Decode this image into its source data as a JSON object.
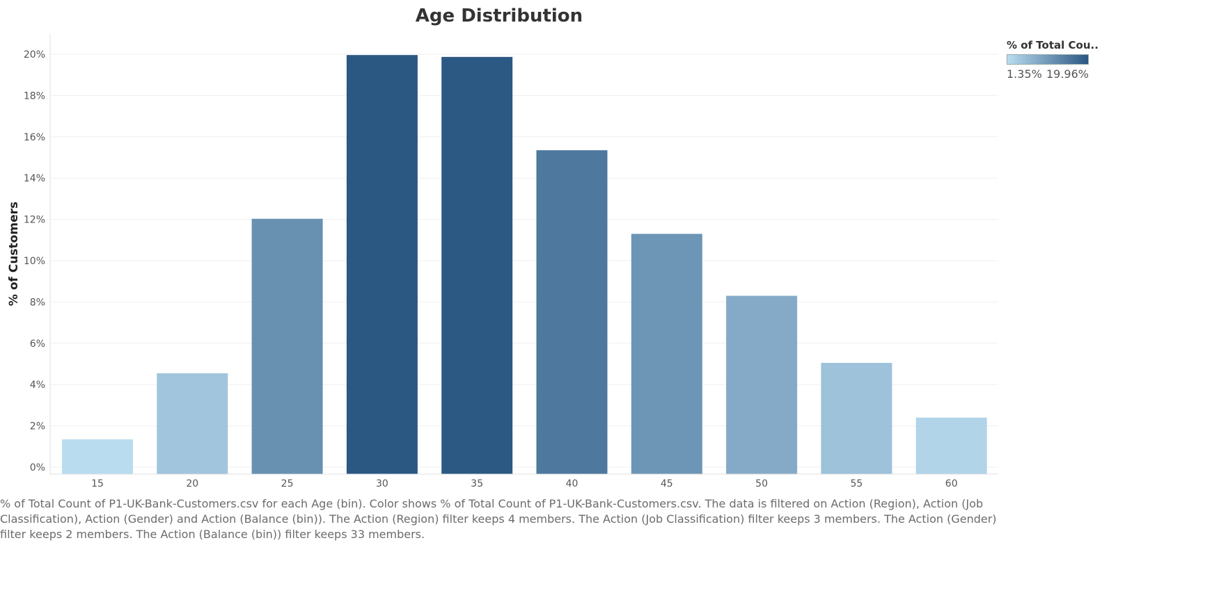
{
  "chart_data": {
    "type": "bar",
    "title": "Age Distribution",
    "xlabel": "",
    "ylabel": "% of Customers",
    "categories": [
      "15",
      "20",
      "25",
      "30",
      "35",
      "40",
      "45",
      "50",
      "55",
      "60"
    ],
    "series": [
      {
        "values": [
          1.35,
          4.55,
          12.03,
          19.96,
          19.87,
          15.35,
          11.3,
          8.3,
          5.05,
          2.4
        ]
      }
    ],
    "y_tick_labels": [
      "0%",
      "2%",
      "4%",
      "6%",
      "8%",
      "10%",
      "12%",
      "14%",
      "16%",
      "18%",
      "20%"
    ],
    "ylim": [
      0,
      20
    ],
    "grid": true,
    "legend": {
      "title": "% of Total Cou..",
      "min_label": "1.35%",
      "max_label": "19.96%",
      "min_value": 1.35,
      "max_value": 19.96,
      "color_low": "#b9dcef",
      "color_high": "#2b5783",
      "placement": "top-right"
    }
  },
  "caption": "% of Total Count of P1-UK-Bank-Customers.csv for each Age (bin).  Color shows % of Total Count of P1-UK-Bank-Customers.csv. The data is filtered on Action (Region), Action (Job Classification), Action (Gender) and Action (Balance (bin)). The Action (Region) filter keeps 4 members. The Action (Job Classification) filter keeps 3 members. The Action (Gender) filter keeps 2 members. The Action (Balance (bin)) filter keeps 33 members."
}
